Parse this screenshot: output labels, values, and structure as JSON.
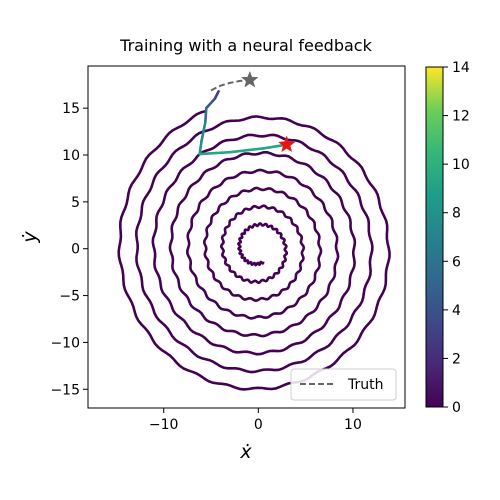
{
  "chart_data": {
    "type": "line",
    "title": "Training with a neural feedback",
    "xlabel": "ẋ",
    "ylabel": "ẏ",
    "xlim": [
      -18,
      15.5
    ],
    "ylim": [
      -17,
      19.5
    ],
    "xticks": [
      -10,
      0,
      10
    ],
    "yticks": [
      -15,
      -10,
      -5,
      0,
      5,
      10,
      15
    ],
    "xtick_labels": [
      "−10",
      "0",
      "10"
    ],
    "ytick_labels": [
      "−15",
      "−10",
      "−5",
      "0",
      "5",
      "10",
      "15"
    ],
    "grid": false,
    "legend": {
      "position": "lower-right",
      "entries": [
        "Truth"
      ]
    },
    "colorbar": {
      "colormap": "viridis",
      "range": [
        0,
        14
      ],
      "ticks": [
        0,
        2,
        4,
        6,
        8,
        10,
        12,
        14
      ],
      "tick_labels": [
        "0",
        "2",
        "4",
        "6",
        "8",
        "10",
        "12",
        "14"
      ]
    },
    "series": [
      {
        "name": "Truth",
        "style": "dashed",
        "color": "#666666",
        "x": [
          -5.0,
          -4.0,
          -3.0,
          -2.0,
          -0.9
        ],
        "y": [
          16.9,
          17.4,
          17.7,
          17.9,
          18.0
        ]
      },
      {
        "style": "colormapped-solid",
        "segments": [
          {
            "color": "#440154",
            "description_value": 0
          },
          {
            "color": "#3b528b"
          },
          {
            "color": "#21918c"
          },
          {
            "color": "#22a884"
          }
        ],
        "spiral_center": [
          0.0,
          0.0
        ],
        "spiral_start_radius": 15.8,
        "spiral_end_radius": 1.5,
        "spiral_turns": 7.5,
        "feedback_path_x": [
          -4.2,
          -4.6,
          -5.5,
          -5.6,
          -6.0,
          -6.2,
          -3.0,
          0.5,
          3.0
        ],
        "feedback_path_y": [
          16.8,
          16.0,
          15.0,
          13.5,
          11.5,
          10.1,
          10.3,
          10.7,
          11.1
        ]
      }
    ],
    "markers": [
      {
        "type": "star",
        "color": "#e8150f",
        "x": 3.0,
        "y": 11.1
      },
      {
        "type": "star",
        "color": "#666666",
        "x": -0.9,
        "y": 18.0
      }
    ]
  }
}
